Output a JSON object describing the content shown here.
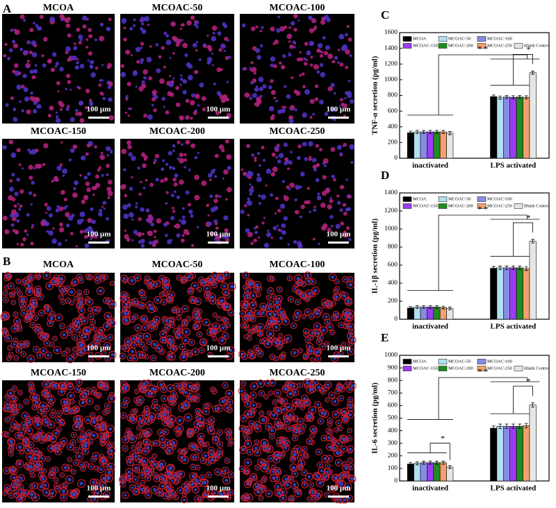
{
  "images": {
    "panels": [
      {
        "letter": "A",
        "labels": [
          "MCOA",
          "MCOAC-50",
          "MCOAC-100",
          "MCOAC-150",
          "MCOAC-200",
          "MCOAC-250"
        ]
      },
      {
        "letter": "B",
        "labels": [
          "MCOA",
          "MCOAC-50",
          "MCOAC-100",
          "MCOAC-150",
          "MCOAC-200",
          "MCOAC-250"
        ]
      }
    ],
    "scale_bar": "100 µm"
  },
  "chart_data": [
    {
      "type": "bar",
      "panel": "C",
      "ylabel": "TNF-α secretion (pg/ml)",
      "categories": [
        "inactivated",
        "LPS activated"
      ],
      "ylim": [
        0,
        1600
      ],
      "yticks": [
        0,
        200,
        400,
        600,
        800,
        1000,
        1200,
        1400,
        1600
      ],
      "series": [
        {
          "name": "MCOA",
          "color": "#000000",
          "values": [
            325,
            785
          ],
          "errors": [
            20,
            20
          ]
        },
        {
          "name": "MCOAC-50",
          "color": "#b0e0f0",
          "values": [
            335,
            770
          ],
          "errors": [
            20,
            20
          ]
        },
        {
          "name": "MCOAC-100",
          "color": "#8a8ae6",
          "values": [
            335,
            780
          ],
          "errors": [
            20,
            20
          ]
        },
        {
          "name": "MCOAC-150",
          "color": "#9b3cf0",
          "values": [
            335,
            775
          ],
          "errors": [
            20,
            20
          ]
        },
        {
          "name": "MCOAC-200",
          "color": "#1e8c1e",
          "values": [
            335,
            780
          ],
          "errors": [
            20,
            20
          ]
        },
        {
          "name": "MCOAC-250",
          "color": "#f2a070",
          "values": [
            335,
            775
          ],
          "errors": [
            20,
            20
          ]
        },
        {
          "name": "Blank Control",
          "color": "#e6e6e6",
          "values": [
            320,
            1090
          ],
          "errors": [
            20,
            20
          ]
        }
      ],
      "annotations": [
        "* *",
        "*"
      ]
    },
    {
      "type": "bar",
      "panel": "D",
      "ylabel": "IL-1β secretion (pg/ml)",
      "categories": [
        "inactivated",
        "LPS activated"
      ],
      "ylim": [
        0,
        1400
      ],
      "yticks": [
        0,
        200,
        400,
        600,
        800,
        1000,
        1200,
        1400
      ],
      "series": [
        {
          "name": "MCOA",
          "color": "#000000",
          "values": [
            125,
            565
          ],
          "errors": [
            15,
            20
          ]
        },
        {
          "name": "MCOAC-50",
          "color": "#b0e0f0",
          "values": [
            135,
            570
          ],
          "errors": [
            15,
            20
          ]
        },
        {
          "name": "MCOAC-100",
          "color": "#8a8ae6",
          "values": [
            135,
            570
          ],
          "errors": [
            15,
            20
          ]
        },
        {
          "name": "MCOAC-150",
          "color": "#9b3cf0",
          "values": [
            135,
            570
          ],
          "errors": [
            15,
            20
          ]
        },
        {
          "name": "MCOAC-200",
          "color": "#1e8c1e",
          "values": [
            135,
            570
          ],
          "errors": [
            15,
            20
          ]
        },
        {
          "name": "MCOAC-250",
          "color": "#f2a070",
          "values": [
            130,
            560
          ],
          "errors": [
            15,
            20
          ]
        },
        {
          "name": "Blank Control",
          "color": "#e6e6e6",
          "values": [
            120,
            865
          ],
          "errors": [
            15,
            20
          ]
        }
      ],
      "annotations": [
        "* *",
        "*"
      ]
    },
    {
      "type": "bar",
      "panel": "E",
      "ylabel": "IL-6 secretion (pg/ml)",
      "categories": [
        "inactivated",
        "LPS activated"
      ],
      "ylim": [
        0,
        1000
      ],
      "yticks": [
        0,
        100,
        200,
        300,
        400,
        500,
        600,
        700,
        800,
        900,
        1000
      ],
      "series": [
        {
          "name": "MCOA",
          "color": "#000000",
          "values": [
            135,
            420
          ],
          "errors": [
            12,
            18
          ]
        },
        {
          "name": "MCOAC-50",
          "color": "#b0e0f0",
          "values": [
            140,
            435
          ],
          "errors": [
            12,
            18
          ]
        },
        {
          "name": "MCOAC-100",
          "color": "#8a8ae6",
          "values": [
            145,
            435
          ],
          "errors": [
            12,
            18
          ]
        },
        {
          "name": "MCOAC-150",
          "color": "#9b3cf0",
          "values": [
            145,
            435
          ],
          "errors": [
            12,
            18
          ]
        },
        {
          "name": "MCOAC-200",
          "color": "#1e8c1e",
          "values": [
            145,
            435
          ],
          "errors": [
            12,
            18
          ]
        },
        {
          "name": "MCOAC-250",
          "color": "#f2a070",
          "values": [
            145,
            440
          ],
          "errors": [
            12,
            18
          ]
        },
        {
          "name": "Blank Control",
          "color": "#e6e6e6",
          "values": [
            110,
            605
          ],
          "errors": [
            12,
            18
          ]
        }
      ],
      "annotations": [
        "* *",
        "*",
        "*"
      ]
    }
  ]
}
